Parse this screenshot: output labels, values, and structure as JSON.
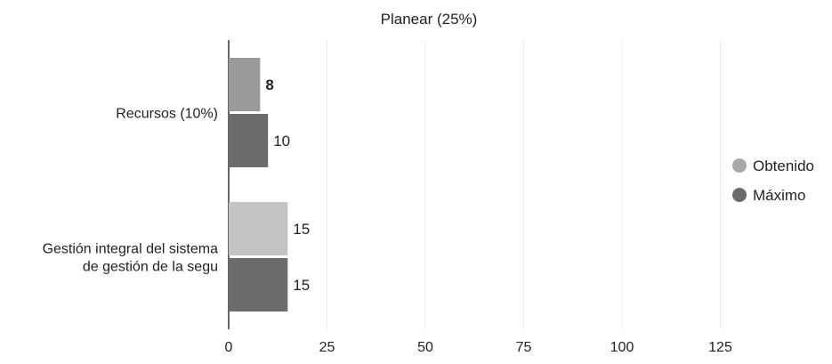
{
  "chart_data": {
    "type": "bar",
    "orientation": "horizontal",
    "title": "Planear (25%)",
    "categories": [
      [
        "Recursos (10%)"
      ],
      [
        "Gestión integral del sistema",
        "de gestión de la segu"
      ]
    ],
    "series": [
      {
        "name": "Obtenido",
        "values": [
          8,
          15
        ],
        "color": "#9a9a9a",
        "alt_color": "#c4c4c4"
      },
      {
        "name": "Máximo",
        "values": [
          10,
          15
        ],
        "color": "#6b6b6b"
      }
    ],
    "xlim": [
      0,
      150
    ],
    "x_ticks": [
      0,
      25,
      50,
      75,
      100,
      125
    ],
    "grid": true,
    "legend_position": "right"
  }
}
